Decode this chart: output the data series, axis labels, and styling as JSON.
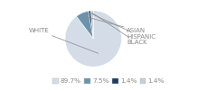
{
  "labels": [
    "WHITE",
    "ASIAN",
    "HISPANIC",
    "BLACK"
  ],
  "sizes": [
    89.7,
    7.5,
    1.4,
    1.4
  ],
  "colors": [
    "#d4dce8",
    "#6b93ad",
    "#1e3d5c",
    "#c5cfd9"
  ],
  "legend_labels": [
    "89.7%",
    "7.5%",
    "1.4%",
    "1.4%"
  ],
  "legend_colors": [
    "#d4dce8",
    "#6b93ad",
    "#1e3d5c",
    "#c5cfd9"
  ],
  "label_fontsize": 5.0,
  "legend_fontsize": 5.2,
  "bg_color": "#ffffff",
  "text_color": "#888888"
}
